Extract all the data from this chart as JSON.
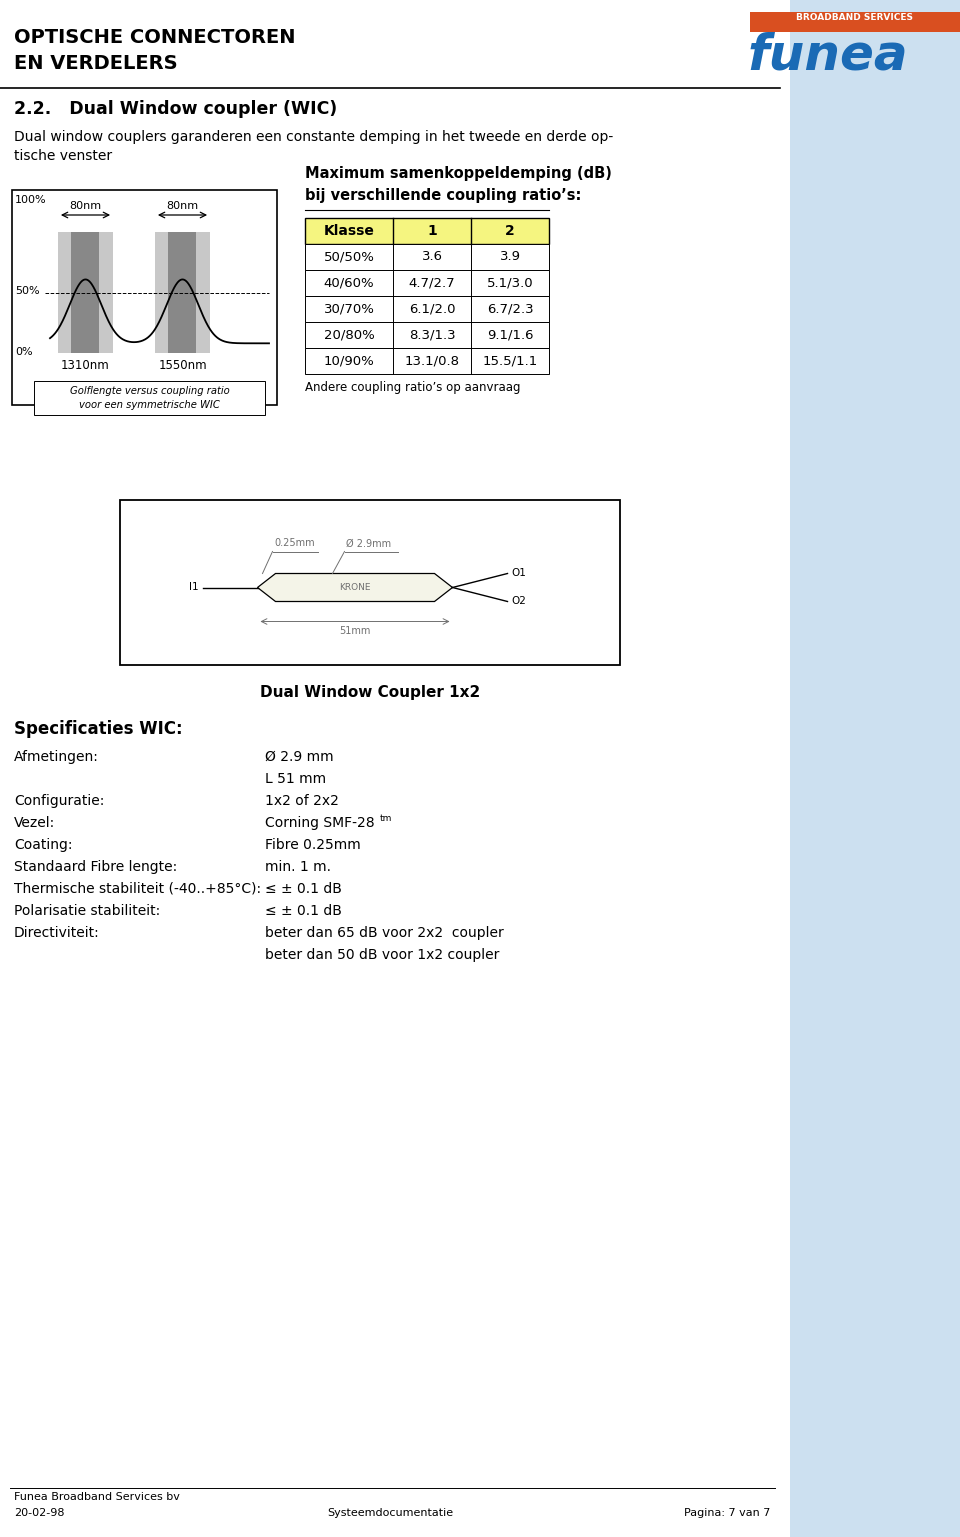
{
  "page_bg": "#ffffff",
  "right_bg": "#cce0f0",
  "header_title_line1": "OPTISCHE CONNECTOREN",
  "header_title_line2": "EN VERDELERS",
  "section_title": "2.2.   Dual Window coupler (WIC)",
  "section_desc": "Dual window couplers garanderen een constante demping in het tweede en derde op-\ntische venster",
  "graph_80nm_1": "80nm",
  "graph_80nm_2": "80nm",
  "graph_label_1310": "1310nm",
  "graph_label_1550": "1550nm",
  "graph_caption": "Golflengte versus coupling ratio\nvoor een symmetrische WIC",
  "table_title_line1": "Maximum samenkoppeldemping (dB)",
  "table_title_line2": "bij verschillende coupling ratio’s:",
  "table_header": [
    "Klasse",
    "1",
    "2"
  ],
  "table_rows": [
    [
      "50/50%",
      "3.6",
      "3.9"
    ],
    [
      "40/60%",
      "4.7/2.7",
      "5.1/3.0"
    ],
    [
      "30/70%",
      "6.1/2.0",
      "6.7/2.3"
    ],
    [
      "20/80%",
      "8.3/1.3",
      "9.1/1.6"
    ],
    [
      "10/90%",
      "13.1/0.8",
      "15.5/1.1"
    ]
  ],
  "table_note": "Andere coupling ratio’s op aanvraag",
  "diagram_caption": "Dual Window Coupler 1x2",
  "spec_title": "Specificaties WIC:",
  "spec_items": [
    [
      "Afmetingen:",
      "Ø 2.9 mm"
    ],
    [
      "",
      "L 51 mm"
    ],
    [
      "Configuratie:",
      "1x2 of 2x2"
    ],
    [
      "Vezel:",
      "Corning SMF-28"
    ],
    [
      "Coating:",
      "Fibre 0.25mm"
    ],
    [
      "Standaard Fibre lengte:",
      "min. 1 m."
    ],
    [
      "Thermische stabiliteit (-40..+85°C):",
      "≤ ± 0.1 dB"
    ],
    [
      "Polarisatie stabiliteit:",
      "≤ ± 0.1 dB"
    ],
    [
      "Directiviteit:",
      "beter dan 65 dB voor 2x2  coupler"
    ],
    [
      "",
      "beter dan 50 dB voor 1x2 coupler"
    ]
  ],
  "footer_company": "Funea Broadband Services bv",
  "footer_date": "20-02-98",
  "footer_doc": "Systeemdocumentatie",
  "footer_page": "Pagina: 7 van 7"
}
